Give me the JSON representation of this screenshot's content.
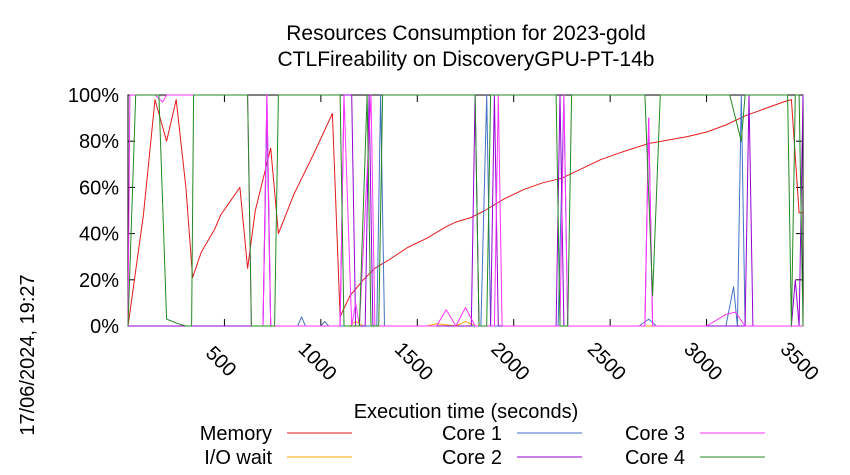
{
  "chart_data": {
    "type": "line",
    "title": "Resources Consumption for 2023-gold",
    "subtitle": "CTLFireability on DiscoveryGPU-PT-14b",
    "xlabel": "Execution time (seconds)",
    "ylabel": "",
    "timestamp": "17/06/2024, 19:27",
    "xlim": [
      0,
      3500
    ],
    "ylim": [
      0,
      100
    ],
    "x_ticks": [
      {
        "value": 500,
        "label": "500"
      },
      {
        "value": 1000,
        "label": "1000"
      },
      {
        "value": 1500,
        "label": "1500"
      },
      {
        "value": 2000,
        "label": "2000"
      },
      {
        "value": 2500,
        "label": "2500"
      },
      {
        "value": 3000,
        "label": "3000"
      },
      {
        "value": 3500,
        "label": "3500"
      }
    ],
    "y_ticks": [
      {
        "value": 0,
        "label": "0%"
      },
      {
        "value": 20,
        "label": "20%"
      },
      {
        "value": 40,
        "label": "40%"
      },
      {
        "value": 60,
        "label": "60%"
      },
      {
        "value": 80,
        "label": "80%"
      },
      {
        "value": 100,
        "label": "100%"
      }
    ],
    "grid": false,
    "legend_position": "bottom",
    "series": [
      {
        "name": "Memory",
        "color": "#e31a1c",
        "points": [
          [
            0,
            0
          ],
          [
            80,
            48
          ],
          [
            140,
            98
          ],
          [
            200,
            80
          ],
          [
            250,
            98
          ],
          [
            300,
            60
          ],
          [
            335,
            21
          ],
          [
            380,
            32
          ],
          [
            450,
            42
          ],
          [
            480,
            48
          ],
          [
            530,
            54
          ],
          [
            580,
            60
          ],
          [
            620,
            25
          ],
          [
            660,
            50
          ],
          [
            740,
            77
          ],
          [
            780,
            40
          ],
          [
            860,
            57
          ],
          [
            960,
            74
          ],
          [
            1060,
            92
          ],
          [
            1100,
            4
          ],
          [
            1150,
            13
          ],
          [
            1220,
            20
          ],
          [
            1280,
            25
          ],
          [
            1360,
            29
          ],
          [
            1450,
            34
          ],
          [
            1550,
            38
          ],
          [
            1650,
            43
          ],
          [
            1700,
            45
          ],
          [
            1780,
            47
          ],
          [
            1850,
            50
          ],
          [
            1950,
            55
          ],
          [
            2050,
            59
          ],
          [
            2150,
            62
          ],
          [
            2250,
            64
          ],
          [
            2350,
            68
          ],
          [
            2450,
            72
          ],
          [
            2550,
            75
          ],
          [
            2700,
            79
          ],
          [
            2900,
            82
          ],
          [
            3000,
            84
          ],
          [
            3100,
            87
          ],
          [
            3200,
            91
          ],
          [
            3400,
            97
          ],
          [
            3440,
            98
          ],
          [
            3480,
            49
          ],
          [
            3500,
            49
          ]
        ]
      },
      {
        "name": "I/O wait",
        "color": "#ffa500",
        "points": [
          [
            0,
            0
          ],
          [
            1150,
            0
          ],
          [
            1180,
            2
          ],
          [
            1220,
            0
          ],
          [
            1550,
            0
          ],
          [
            1600,
            1
          ],
          [
            1700,
            0
          ],
          [
            1750,
            2
          ],
          [
            1800,
            0
          ],
          [
            3500,
            0
          ]
        ]
      },
      {
        "name": "Core 1",
        "color": "#4472c4",
        "points": [
          [
            0,
            0
          ],
          [
            700,
            0
          ],
          [
            720,
            90
          ],
          [
            740,
            0
          ],
          [
            880,
            0
          ],
          [
            900,
            4
          ],
          [
            920,
            0
          ],
          [
            1000,
            0
          ],
          [
            1020,
            2
          ],
          [
            1040,
            0
          ],
          [
            1290,
            0
          ],
          [
            1310,
            100
          ],
          [
            1330,
            0
          ],
          [
            1830,
            0
          ],
          [
            1860,
            100
          ],
          [
            1880,
            0
          ],
          [
            2230,
            0
          ],
          [
            2260,
            100
          ],
          [
            2280,
            0
          ],
          [
            2650,
            0
          ],
          [
            2700,
            3
          ],
          [
            2740,
            0
          ],
          [
            3000,
            0
          ],
          [
            3050,
            0
          ],
          [
            3100,
            0
          ],
          [
            3140,
            17
          ],
          [
            3160,
            0
          ],
          [
            3180,
            100
          ],
          [
            3200,
            0
          ],
          [
            3500,
            0
          ]
        ]
      },
      {
        "name": "Core 2",
        "color": "#9400d3",
        "points": [
          [
            0,
            0
          ],
          [
            700,
            0
          ],
          [
            720,
            100
          ],
          [
            740,
            0
          ],
          [
            1100,
            0
          ],
          [
            1120,
            100
          ],
          [
            1160,
            100
          ],
          [
            1180,
            0
          ],
          [
            1230,
            0
          ],
          [
            1250,
            100
          ],
          [
            1270,
            0
          ],
          [
            1780,
            0
          ],
          [
            1800,
            100
          ],
          [
            1820,
            0
          ],
          [
            1880,
            0
          ],
          [
            1900,
            100
          ],
          [
            1920,
            0
          ],
          [
            2220,
            0
          ],
          [
            2240,
            100
          ],
          [
            2260,
            0
          ],
          [
            2680,
            0
          ],
          [
            2700,
            90
          ],
          [
            2720,
            0
          ],
          [
            3200,
            0
          ],
          [
            3220,
            100
          ],
          [
            3240,
            0
          ],
          [
            3440,
            0
          ],
          [
            3460,
            20
          ],
          [
            3480,
            0
          ],
          [
            3500,
            100
          ]
        ]
      },
      {
        "name": "Core 3",
        "color": "#ff33ff",
        "points": [
          [
            0,
            0
          ],
          [
            10,
            100
          ],
          [
            140,
            100
          ],
          [
            180,
            97
          ],
          [
            200,
            100
          ],
          [
            620,
            100
          ],
          [
            640,
            0
          ],
          [
            700,
            0
          ],
          [
            720,
            100
          ],
          [
            740,
            0
          ],
          [
            1100,
            0
          ],
          [
            1120,
            100
          ],
          [
            1160,
            0
          ],
          [
            1180,
            10
          ],
          [
            1200,
            0
          ],
          [
            1260,
            100
          ],
          [
            1280,
            0
          ],
          [
            1600,
            0
          ],
          [
            1650,
            7
          ],
          [
            1700,
            0
          ],
          [
            1750,
            8
          ],
          [
            1800,
            0
          ],
          [
            1900,
            0
          ],
          [
            1920,
            100
          ],
          [
            1940,
            0
          ],
          [
            2000,
            0
          ],
          [
            2240,
            0
          ],
          [
            2260,
            100
          ],
          [
            2280,
            0
          ],
          [
            2680,
            0
          ],
          [
            2700,
            90
          ],
          [
            2720,
            0
          ],
          [
            3000,
            0
          ],
          [
            3100,
            5
          ],
          [
            3150,
            6
          ],
          [
            3200,
            0
          ],
          [
            3500,
            0
          ]
        ]
      },
      {
        "name": "Core 4",
        "color": "#228b22",
        "points": [
          [
            0,
            0
          ],
          [
            40,
            100
          ],
          [
            160,
            100
          ],
          [
            200,
            3
          ],
          [
            260,
            1
          ],
          [
            300,
            0
          ],
          [
            330,
            0
          ],
          [
            340,
            100
          ],
          [
            620,
            100
          ],
          [
            640,
            0
          ],
          [
            760,
            0
          ],
          [
            780,
            100
          ],
          [
            1100,
            100
          ],
          [
            1120,
            0
          ],
          [
            1200,
            0
          ],
          [
            1240,
            100
          ],
          [
            1260,
            0
          ],
          [
            1300,
            0
          ],
          [
            1320,
            100
          ],
          [
            1800,
            100
          ],
          [
            1820,
            0
          ],
          [
            1860,
            0
          ],
          [
            1880,
            100
          ],
          [
            2220,
            100
          ],
          [
            2240,
            0
          ],
          [
            2280,
            0
          ],
          [
            2300,
            100
          ],
          [
            2680,
            100
          ],
          [
            2720,
            13
          ],
          [
            2760,
            100
          ],
          [
            3120,
            100
          ],
          [
            3180,
            80
          ],
          [
            3200,
            100
          ],
          [
            3420,
            100
          ],
          [
            3440,
            0
          ],
          [
            3460,
            100
          ],
          [
            3480,
            100
          ],
          [
            3500,
            0
          ]
        ]
      }
    ]
  }
}
